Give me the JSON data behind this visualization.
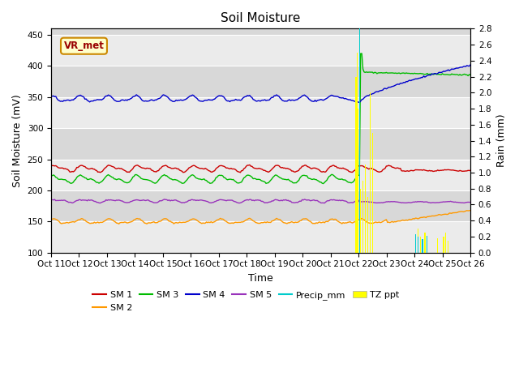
{
  "title": "Soil Moisture",
  "xlabel": "Time",
  "ylabel_left": "Soil Moisture (mV)",
  "ylabel_right": "Rain (mm)",
  "ylim_left": [
    100,
    460
  ],
  "ylim_right": [
    0.0,
    2.8
  ],
  "plot_bg_color": "#d8d8d8",
  "annotation_text": "VR_met",
  "annotation_color": "#990000",
  "annotation_bg": "#ffffcc",
  "annotation_border": "#cc8800",
  "sm1_color": "#cc0000",
  "sm2_color": "#ff9900",
  "sm3_color": "#00bb00",
  "sm4_color": "#0000cc",
  "sm5_color": "#9933bb",
  "precip_color": "#00cccc",
  "tz_ppt_color": "#ffff00",
  "xtick_labels": [
    "Oct 11",
    "Oct 12",
    "Oct 13",
    "Oct 14",
    "Oct 15",
    "Oct 16",
    "Oct 17",
    "Oct 18",
    "Oct 19",
    "Oct 20",
    "Oct 21",
    "Oct 22",
    "Oct 23",
    "Oct 24",
    "Oct 25",
    "Oct 26"
  ],
  "yticks_left": [
    100,
    150,
    200,
    250,
    300,
    350,
    400,
    450
  ],
  "yticks_right": [
    0.0,
    0.2,
    0.4,
    0.6,
    0.8,
    1.0,
    1.2,
    1.4,
    1.6,
    1.8,
    2.0,
    2.2,
    2.4,
    2.6,
    2.8
  ]
}
